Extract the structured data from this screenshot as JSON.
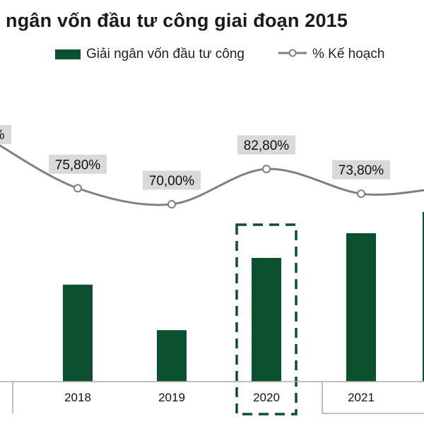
{
  "title": "ngân vốn đầu tư công giai đoạn 2015",
  "colors": {
    "bar": "#0b5130",
    "line": "#808080",
    "label_bg": "#d9d9d9",
    "highlight_border": "#0b5130",
    "axis": "#aaaaaa"
  },
  "chart_data": {
    "type": "bar",
    "title": "ngân vốn đầu tư công giai đoạn 2015",
    "categories": [
      "2018",
      "2019",
      "2020",
      "2021"
    ],
    "series": [
      {
        "name": "Giải ngân vốn đầu tư công",
        "type": "bar",
        "values": [
          310,
          264,
          337,
          362
        ]
      },
      {
        "name": "% Kế hoạch",
        "type": "line",
        "values": [
          75.8,
          70.0,
          82.8,
          73.8
        ],
        "labels": [
          "75,80%",
          "70,00%",
          "82,80%",
          "73,80%"
        ]
      }
    ],
    "partial_left_label": "%",
    "highlighted_category": "2020",
    "legend_position": "top",
    "grid": false
  }
}
